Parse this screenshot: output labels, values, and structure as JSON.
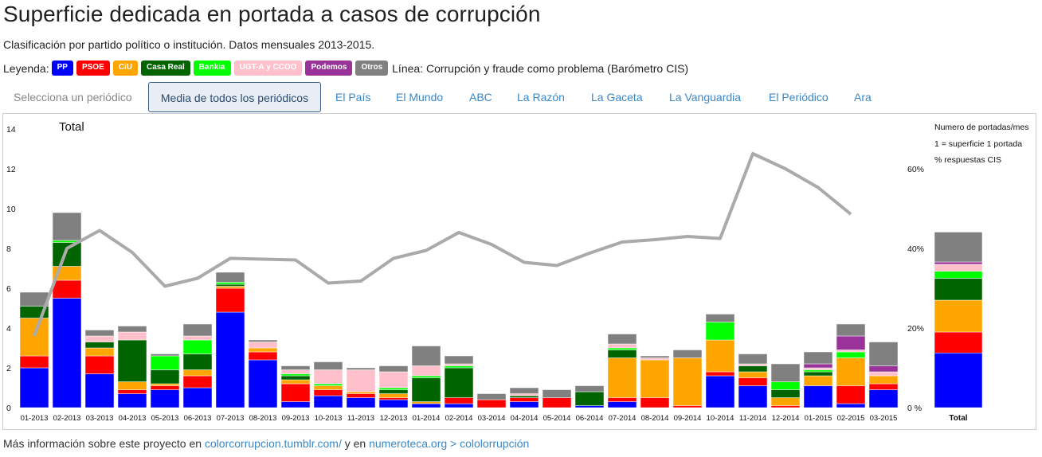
{
  "header": {
    "title": "Superficie dedicada en portada a casos de corrupción",
    "subtitle": "Clasificación por partido político o institución. Datos mensuales 2013-2015."
  },
  "legend": {
    "label": "Leyenda:",
    "items": [
      {
        "label": "PP",
        "color": "#0000ff"
      },
      {
        "label": "PSOE",
        "color": "#ff0000"
      },
      {
        "label": "CiU",
        "color": "#ffa500"
      },
      {
        "label": "Casa Real",
        "color": "#006400"
      },
      {
        "label": "Bankia",
        "color": "#00ff00"
      },
      {
        "label": "UGT-A y CCOO",
        "color": "#ffc0cb"
      },
      {
        "label": "Podemos",
        "color": "#993399"
      },
      {
        "label": "Otros",
        "color": "#808080"
      }
    ],
    "line_label": "Línea: Corrupción y fraude como problema (Barómetro CIS)"
  },
  "tabs": [
    {
      "label": "Selecciona un periódico"
    },
    {
      "label": "Media de todos los periódicos"
    },
    {
      "label": "El País"
    },
    {
      "label": "El Mundo"
    },
    {
      "label": "ABC"
    },
    {
      "label": "La Razón"
    },
    {
      "label": "La Gaceta"
    },
    {
      "label": "La Vanguardia"
    },
    {
      "label": "El Periódico"
    },
    {
      "label": "Ara"
    }
  ],
  "chart_data": {
    "type": "bar",
    "stacked": true,
    "title": "Total",
    "notes": [
      "Numero de portadas/mes",
      "1 = superficie 1 portada",
      "% respuestas CIS"
    ],
    "categories": [
      "01-2013",
      "02-2013",
      "03-2013",
      "04-2013",
      "05-2013",
      "06-2013",
      "07-2013",
      "08-2013",
      "09-2013",
      "10-2013",
      "11-2013",
      "12-2013",
      "01-2014",
      "02-2014",
      "03-2014",
      "04-2014",
      "05-2014",
      "06-2014",
      "07-2014",
      "08-2014",
      "09-2014",
      "10-2014",
      "11-2014",
      "12-2014",
      "01-2015",
      "02-2015",
      "03-2015"
    ],
    "ylim": [
      0,
      15
    ],
    "yticks": [
      0,
      2,
      4,
      6,
      8,
      10,
      12,
      14
    ],
    "y2lim": [
      0,
      75
    ],
    "y2ticks": [
      "0 %",
      "20%",
      "40%",
      "60%"
    ],
    "series": [
      {
        "name": "PP",
        "color": "#0000ff",
        "values": [
          2.0,
          5.5,
          1.7,
          0.7,
          0.9,
          1.0,
          4.8,
          2.4,
          0.3,
          0.6,
          0.5,
          0.4,
          0.2,
          0.2,
          0.0,
          0.3,
          0.0,
          0.1,
          0.3,
          0.0,
          0.0,
          1.6,
          1.1,
          0.0,
          1.1,
          0.2,
          0.9
        ]
      },
      {
        "name": "PSOE",
        "color": "#ff0000",
        "values": [
          0.6,
          0.9,
          0.9,
          0.2,
          0.2,
          0.6,
          1.2,
          0.4,
          0.9,
          0.3,
          0.2,
          0.1,
          0.0,
          0.3,
          0.4,
          0.2,
          0.5,
          0.0,
          0.2,
          0.5,
          0.1,
          0.2,
          0.4,
          0.1,
          0.0,
          0.9,
          0.3
        ]
      },
      {
        "name": "CiU",
        "color": "#ffa500",
        "values": [
          1.9,
          0.7,
          0.4,
          0.4,
          0.1,
          0.3,
          0.1,
          0.2,
          0.2,
          0.2,
          0.1,
          0.2,
          0.1,
          0.0,
          0.0,
          0.0,
          0.0,
          0.0,
          2.0,
          1.9,
          2.4,
          1.6,
          0.3,
          0.4,
          0.5,
          1.4,
          0.4
        ]
      },
      {
        "name": "Casa Real",
        "color": "#006400",
        "values": [
          0.6,
          1.2,
          0.3,
          2.1,
          0.7,
          0.8,
          0.1,
          0.0,
          0.2,
          0.0,
          0.0,
          0.2,
          1.2,
          1.5,
          0.0,
          0.1,
          0.0,
          0.7,
          0.4,
          0.0,
          0.0,
          0.0,
          0.3,
          0.4,
          0.2,
          0.0,
          0.0
        ]
      },
      {
        "name": "Bankia",
        "color": "#00ff00",
        "values": [
          0.0,
          0.1,
          0.0,
          0.0,
          0.7,
          0.7,
          0.1,
          0.0,
          0.1,
          0.1,
          0.0,
          0.1,
          0.1,
          0.1,
          0.0,
          0.0,
          0.0,
          0.0,
          0.1,
          0.0,
          0.0,
          0.9,
          0.0,
          0.4,
          0.1,
          0.3,
          0.0
        ]
      },
      {
        "name": "UGT-A y CCOO",
        "color": "#ffc0cb",
        "values": [
          0.0,
          0.0,
          0.3,
          0.4,
          0.0,
          0.2,
          0.0,
          0.3,
          0.2,
          0.7,
          1.1,
          0.8,
          0.5,
          0.1,
          0.0,
          0.1,
          0.0,
          0.0,
          0.2,
          0.1,
          0.0,
          0.0,
          0.1,
          0.0,
          0.1,
          0.1,
          0.2
        ]
      },
      {
        "name": "Podemos",
        "color": "#993399",
        "values": [
          0.0,
          0.0,
          0.0,
          0.0,
          0.0,
          0.0,
          0.0,
          0.0,
          0.0,
          0.0,
          0.0,
          0.0,
          0.0,
          0.0,
          0.0,
          0.0,
          0.0,
          0.0,
          0.0,
          0.0,
          0.0,
          0.0,
          0.0,
          0.0,
          0.2,
          0.7,
          0.3
        ]
      },
      {
        "name": "Otros",
        "color": "#808080",
        "values": [
          0.7,
          1.4,
          0.3,
          0.3,
          0.1,
          0.6,
          0.5,
          0.1,
          0.2,
          0.4,
          0.1,
          0.3,
          1.0,
          0.4,
          0.3,
          0.3,
          0.4,
          0.3,
          0.5,
          0.1,
          0.4,
          0.4,
          0.5,
          0.9,
          0.6,
          0.6,
          1.2
        ]
      }
    ],
    "cis_line": {
      "name": "Corrupción y fraude como problema (Barómetro CIS)",
      "unit": "%",
      "values": [
        18,
        40,
        44.5,
        39,
        30.5,
        32.5,
        37.5,
        37.3,
        37.1,
        31.3,
        31.8,
        37.5,
        39.5,
        44,
        41,
        36.5,
        35.7,
        38.8,
        41.6,
        42.2,
        43,
        42.5,
        63.8,
        60,
        55.3,
        48.6,
        null
      ],
      "color": "#aaaaaa"
    },
    "total_bar": {
      "label": "Total",
      "values": [
        2.75,
        1.05,
        1.6,
        1.1,
        0.35,
        0.35,
        0.12,
        1.5
      ]
    }
  },
  "footer": {
    "prefix": "Más información sobre este proyecto en ",
    "link1": "colorcorrupcion.tumblr.com/",
    "middle": " y en ",
    "link2": "numeroteca.org > cololorrupción"
  }
}
